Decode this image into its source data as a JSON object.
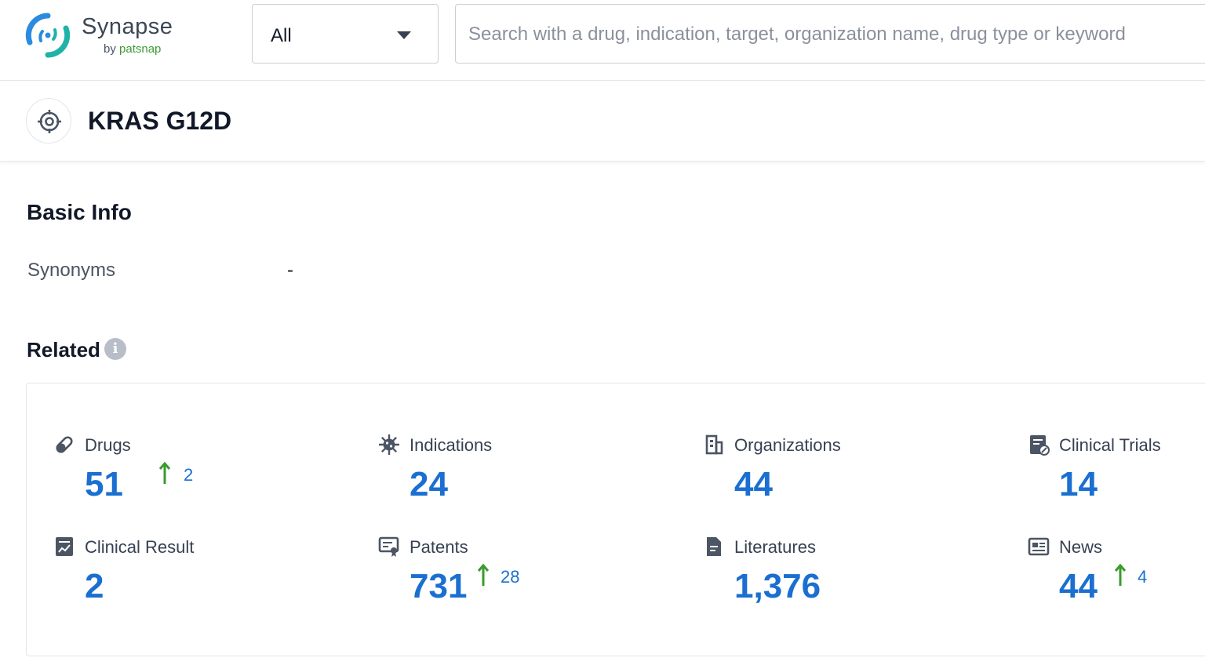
{
  "brand": {
    "name": "Synapse",
    "by_prefix": "by",
    "by_name": "patsnap"
  },
  "search": {
    "scope_value": "All",
    "placeholder": "Search with a drug, indication, target, organization name, drug type or keyword"
  },
  "header": {
    "title": "KRAS G12D"
  },
  "basic_info": {
    "title": "Basic Info",
    "synonyms_label": "Synonyms",
    "synonyms_value": "-"
  },
  "related": {
    "title": "Related",
    "items": [
      {
        "label": "Drugs",
        "value": "51",
        "delta": "2",
        "icon": "pill-icon"
      },
      {
        "label": "Indications",
        "value": "24",
        "delta": null,
        "icon": "virus-icon"
      },
      {
        "label": "Organizations",
        "value": "44",
        "delta": null,
        "icon": "building-icon"
      },
      {
        "label": "Clinical Trials",
        "value": "14",
        "delta": null,
        "icon": "clinical-trial-icon"
      },
      {
        "label": "Clinical Result",
        "value": "2",
        "delta": null,
        "icon": "chart-report-icon"
      },
      {
        "label": "Patents",
        "value": "731",
        "delta": "28",
        "icon": "certificate-icon"
      },
      {
        "label": "Literatures",
        "value": "1,376",
        "delta": null,
        "icon": "document-icon"
      },
      {
        "label": "News",
        "value": "44",
        "delta": "4",
        "icon": "newspaper-icon"
      }
    ]
  },
  "colors": {
    "accent": "#1a6fd1",
    "up_arrow": "#3a9a2e",
    "logo_teal": "#1fb3a8",
    "logo_blue": "#2a8be0"
  }
}
